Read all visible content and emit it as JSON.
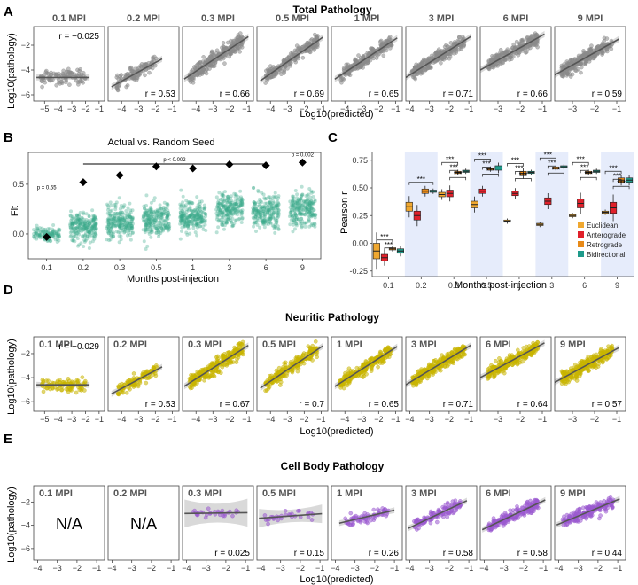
{
  "panel_labels": {
    "a": "A",
    "b": "B",
    "c": "C",
    "d": "D",
    "e": "E"
  },
  "colors": {
    "grey_points": "#8a8a8a",
    "neuritic_points": "#c8b400",
    "cellbody_points": "#9b59d0",
    "neuritic_title": "#b8a400",
    "cellbody_title": "#9b3fc8",
    "seed_points": "#3aa889",
    "euclidean": "#f0a830",
    "anterograde": "#e0202a",
    "retrograde": "#e88a18",
    "bidirectional": "#1e9a8a",
    "shade": "#e6ecfb"
  },
  "chart_data": [
    {
      "id": "A",
      "type": "scatter",
      "title": "Total Pathology",
      "xlabel": "Log10(predicted)",
      "ylabel": "Log10(pathology)",
      "ylim": [
        -6.5,
        -0.5
      ],
      "yticks": [
        -6,
        -4,
        -2
      ],
      "panels": [
        {
          "label": "0.1 MPI",
          "r": "r = −0.025",
          "r_pos": "top",
          "xlim": [
            -5.8,
            -0.6
          ],
          "xticks": [
            -5,
            -4,
            -3,
            -2,
            -1
          ],
          "x_range": [
            -5.3,
            -2.0
          ],
          "slope": 0.0,
          "intercept": -4.6,
          "spread": 0.7,
          "n": 90
        },
        {
          "label": "0.2 MPI",
          "r": "r = 0.53",
          "r_pos": "bottom",
          "xlim": [
            -4.8,
            -0.6
          ],
          "xticks": [
            -4,
            -3,
            -2,
            -1
          ],
          "x_range": [
            -4.3,
            -1.9
          ],
          "slope": 0.75,
          "intercept": -1.9,
          "spread": 0.7,
          "n": 110
        },
        {
          "label": "0.3 MPI",
          "r": "r = 0.66",
          "r_pos": "bottom",
          "xlim": [
            -4.8,
            -0.6
          ],
          "xticks": [
            -4,
            -3,
            -2,
            -1
          ],
          "x_range": [
            -4.4,
            -1.2
          ],
          "slope": 0.9,
          "intercept": -0.5,
          "spread": 0.8,
          "n": 260
        },
        {
          "label": "0.5 MPI",
          "r": "r = 0.69",
          "r_pos": "bottom",
          "xlim": [
            -4.8,
            -0.6
          ],
          "xticks": [
            -4,
            -3,
            -2,
            -1
          ],
          "x_range": [
            -4.3,
            -1.2
          ],
          "slope": 0.95,
          "intercept": -0.5,
          "spread": 0.7,
          "n": 220
        },
        {
          "label": "1 MPI",
          "r": "r = 0.65",
          "r_pos": "bottom",
          "xlim": [
            -4.8,
            -0.6
          ],
          "xticks": [
            -4,
            -3,
            -2,
            -1
          ],
          "x_range": [
            -4.3,
            -1.2
          ],
          "slope": 0.9,
          "intercept": -0.6,
          "spread": 0.7,
          "n": 240
        },
        {
          "label": "3 MPI",
          "r": "r = 0.71",
          "r_pos": "bottom",
          "xlim": [
            -4.2,
            -0.6
          ],
          "xticks": [
            -4,
            -3,
            -2,
            -1
          ],
          "x_range": [
            -3.9,
            -1.2
          ],
          "slope": 1.0,
          "intercept": -0.4,
          "spread": 0.7,
          "n": 260
        },
        {
          "label": "6 MPI",
          "r": "r = 0.66",
          "r_pos": "bottom",
          "xlim": [
            -3.8,
            -0.6
          ],
          "xticks": [
            -3,
            -2,
            -1
          ],
          "x_range": [
            -3.5,
            -1.2
          ],
          "slope": 1.0,
          "intercept": -0.2,
          "spread": 0.7,
          "n": 240
        },
        {
          "label": "9 MPI",
          "r": "r = 0.59",
          "r_pos": "bottom",
          "xlim": [
            -3.8,
            -0.6
          ],
          "xticks": [
            -3,
            -2,
            -1
          ],
          "x_range": [
            -3.5,
            -1.2
          ],
          "slope": 1.0,
          "intercept": -0.6,
          "spread": 0.8,
          "n": 260
        }
      ]
    },
    {
      "id": "B",
      "type": "scatter",
      "title": "Actual vs. Random Seed",
      "xlabel": "Months post-injection",
      "ylabel": "Fit",
      "categories": [
        "0.1",
        "0.2",
        "0.3",
        "0.5",
        "1",
        "3",
        "6",
        "9"
      ],
      "ylim": [
        -0.25,
        0.82
      ],
      "yticks": [
        0.0,
        0.5
      ],
      "ytick_labels": [
        "0.0",
        "0.5"
      ],
      "actual_fit": [
        -0.03,
        0.52,
        0.59,
        0.68,
        0.66,
        0.7,
        0.69,
        0.72
      ],
      "random_means": [
        0.0,
        0.07,
        0.12,
        0.15,
        0.17,
        0.25,
        0.22,
        0.25
      ],
      "random_spread": [
        0.08,
        0.17,
        0.19,
        0.2,
        0.2,
        0.2,
        0.21,
        0.2
      ],
      "annotations": {
        "first": "p = 0.55",
        "bracket": "p < 0.002",
        "last": "p = 0.002"
      }
    },
    {
      "id": "C",
      "type": "box",
      "ylabel": "Pearson r",
      "xlabel": "Months post-injection",
      "categories": [
        "0.1",
        "0.2",
        "0.3",
        "0.5",
        "1",
        "3",
        "6",
        "9"
      ],
      "ylim": [
        -0.3,
        0.82
      ],
      "yticks": [
        -0.25,
        0.0,
        0.25,
        0.5,
        0.75
      ],
      "ytick_labels": [
        "-0.25",
        "0.00",
        "0.25",
        "0.50",
        "0.75"
      ],
      "series": [
        {
          "name": "Euclidean",
          "medians": [
            -0.07,
            0.33,
            0.44,
            0.35,
            0.2,
            0.17,
            0.25,
            0.28
          ],
          "iqr": [
            0.07,
            0.04,
            0.02,
            0.03,
            0.01,
            0.01,
            0.01,
            0.01
          ]
        },
        {
          "name": "Anterograde",
          "medians": [
            -0.13,
            0.25,
            0.45,
            0.47,
            0.45,
            0.38,
            0.36,
            0.32
          ],
          "iqr": [
            0.03,
            0.04,
            0.03,
            0.02,
            0.02,
            0.03,
            0.04,
            0.05
          ]
        },
        {
          "name": "Retrograde",
          "medians": [
            -0.05,
            0.47,
            0.64,
            0.67,
            0.63,
            0.68,
            0.64,
            0.57
          ],
          "iqr": [
            0.01,
            0.02,
            0.01,
            0.01,
            0.02,
            0.01,
            0.01,
            0.02
          ]
        },
        {
          "name": "Bidirectional",
          "medians": [
            -0.07,
            0.47,
            0.65,
            0.68,
            0.64,
            0.69,
            0.65,
            0.57
          ],
          "iqr": [
            0.02,
            0.01,
            0.01,
            0.02,
            0.01,
            0.01,
            0.01,
            0.02
          ]
        }
      ],
      "sig": "***"
    },
    {
      "id": "D",
      "type": "scatter",
      "title": "Neuritic Pathology",
      "xlabel": "Log10(predicted)",
      "ylabel": "Log10(pathology)",
      "ylim": [
        -6.8,
        -0.6
      ],
      "yticks": [
        -6,
        -4,
        -2
      ],
      "panels": [
        {
          "label": "0.1 MPI",
          "r": "r = −0.029",
          "r_pos": "top",
          "xlim": [
            -5.8,
            -0.6
          ],
          "xticks": [
            -5,
            -4,
            -3,
            -2,
            -1
          ],
          "x_range": [
            -5.3,
            -2.0
          ],
          "slope": 0.0,
          "intercept": -4.6,
          "spread": 0.7,
          "n": 90
        },
        {
          "label": "0.2 MPI",
          "r": "r = 0.53",
          "r_pos": "bottom",
          "xlim": [
            -4.8,
            -0.6
          ],
          "xticks": [
            -4,
            -3,
            -2,
            -1
          ],
          "x_range": [
            -4.3,
            -1.9
          ],
          "slope": 0.75,
          "intercept": -1.9,
          "spread": 0.7,
          "n": 110
        },
        {
          "label": "0.3 MPI",
          "r": "r = 0.67",
          "r_pos": "bottom",
          "xlim": [
            -4.8,
            -0.6
          ],
          "xticks": [
            -4,
            -3,
            -2,
            -1
          ],
          "x_range": [
            -4.4,
            -1.2
          ],
          "slope": 0.9,
          "intercept": -0.5,
          "spread": 0.8,
          "n": 260
        },
        {
          "label": "0.5 MPI",
          "r": "r = 0.7",
          "r_pos": "bottom",
          "xlim": [
            -4.8,
            -0.6
          ],
          "xticks": [
            -4,
            -3,
            -2,
            -1
          ],
          "x_range": [
            -4.3,
            -1.2
          ],
          "slope": 0.95,
          "intercept": -0.5,
          "spread": 0.7,
          "n": 220
        },
        {
          "label": "1 MPI",
          "r": "r = 0.65",
          "r_pos": "bottom",
          "xlim": [
            -4.8,
            -0.6
          ],
          "xticks": [
            -4,
            -3,
            -2,
            -1
          ],
          "x_range": [
            -4.3,
            -1.2
          ],
          "slope": 0.9,
          "intercept": -0.6,
          "spread": 0.7,
          "n": 240
        },
        {
          "label": "3 MPI",
          "r": "r = 0.71",
          "r_pos": "bottom",
          "xlim": [
            -4.2,
            -0.6
          ],
          "xticks": [
            -4,
            -3,
            -2,
            -1
          ],
          "x_range": [
            -3.9,
            -1.2
          ],
          "slope": 1.0,
          "intercept": -0.4,
          "spread": 0.7,
          "n": 260
        },
        {
          "label": "6 MPI",
          "r": "r = 0.64",
          "r_pos": "bottom",
          "xlim": [
            -3.8,
            -0.6
          ],
          "xticks": [
            -3,
            -2,
            -1
          ],
          "x_range": [
            -3.5,
            -1.2
          ],
          "slope": 1.0,
          "intercept": -0.2,
          "spread": 0.7,
          "n": 240
        },
        {
          "label": "9 MPI",
          "r": "r = 0.57",
          "r_pos": "bottom",
          "xlim": [
            -3.8,
            -0.6
          ],
          "xticks": [
            -3,
            -2,
            -1
          ],
          "x_range": [
            -3.5,
            -1.2
          ],
          "slope": 1.0,
          "intercept": -0.6,
          "spread": 0.8,
          "n": 260
        }
      ]
    },
    {
      "id": "E",
      "type": "scatter",
      "title": "Cell Body Pathology",
      "xlabel": "Log10(predicted)",
      "ylabel": "Log10(pathology)",
      "ylim": [
        -7.0,
        -0.6
      ],
      "yticks": [
        -6,
        -4,
        -2
      ],
      "panels": [
        {
          "label": "0.1 MPI",
          "r": "",
          "na": "N/A",
          "xlim": [
            -4.2,
            -0.6
          ],
          "xticks": [
            -4,
            -3,
            -2,
            -1
          ],
          "n": 0
        },
        {
          "label": "0.2 MPI",
          "r": "",
          "na": "N/A",
          "xlim": [
            -4.2,
            -0.6
          ],
          "xticks": [
            -4,
            -3,
            -2,
            -1
          ],
          "n": 0
        },
        {
          "label": "0.3 MPI",
          "r": "r = 0.025",
          "r_pos": "bottom",
          "xlim": [
            -4.2,
            -0.6
          ],
          "xticks": [
            -4,
            -3,
            -2,
            -1
          ],
          "x_range": [
            -3.8,
            -1.2
          ],
          "slope": 0.02,
          "intercept": -2.9,
          "spread": 0.5,
          "n": 30,
          "band": 1.2
        },
        {
          "label": "0.5 MPI",
          "r": "r = 0.15",
          "r_pos": "bottom",
          "xlim": [
            -4.2,
            -0.6
          ],
          "xticks": [
            -4,
            -3,
            -2,
            -1
          ],
          "x_range": [
            -3.8,
            -1.2
          ],
          "slope": 0.12,
          "intercept": -2.9,
          "spread": 0.6,
          "n": 30,
          "band": 0.8
        },
        {
          "label": "1 MPI",
          "r": "r = 0.26",
          "r_pos": "bottom",
          "xlim": [
            -4.2,
            -0.6
          ],
          "xticks": [
            -4,
            -3,
            -2,
            -1
          ],
          "x_range": [
            -3.5,
            -1.3
          ],
          "slope": 0.4,
          "intercept": -2.3,
          "spread": 0.6,
          "n": 70
        },
        {
          "label": "3 MPI",
          "r": "r = 0.58",
          "r_pos": "bottom",
          "xlim": [
            -4.2,
            -0.6
          ],
          "xticks": [
            -4,
            -3,
            -2,
            -1
          ],
          "x_range": [
            -3.8,
            -1.4
          ],
          "slope": 0.8,
          "intercept": -1.0,
          "spread": 0.7,
          "n": 120
        },
        {
          "label": "6 MPI",
          "r": "r = 0.58",
          "r_pos": "bottom",
          "xlim": [
            -4.2,
            -0.6
          ],
          "xticks": [
            -4,
            -3,
            -2,
            -1
          ],
          "x_range": [
            -3.8,
            -1.2
          ],
          "slope": 0.8,
          "intercept": -1.1,
          "spread": 0.7,
          "n": 180
        },
        {
          "label": "9 MPI",
          "r": "r = 0.44",
          "r_pos": "bottom",
          "xlim": [
            -4.2,
            -0.6
          ],
          "xticks": [
            -4,
            -3,
            -2,
            -1
          ],
          "x_range": [
            -3.8,
            -1.2
          ],
          "slope": 0.7,
          "intercept": -1.1,
          "spread": 0.7,
          "n": 180
        }
      ]
    }
  ]
}
